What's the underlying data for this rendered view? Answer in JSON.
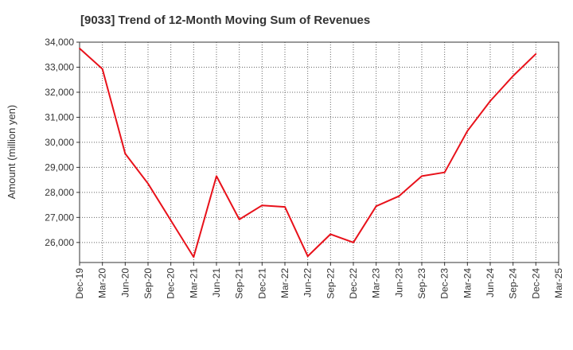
{
  "chart_data": {
    "type": "line",
    "title": "[9033]  Trend of 12-Month Moving Sum of Revenues",
    "xlabel": "",
    "ylabel": "Amount (million yen)",
    "ylim": [
      25200,
      34000
    ],
    "yticks": [
      26000,
      27000,
      28000,
      29000,
      30000,
      31000,
      32000,
      33000,
      34000
    ],
    "ytick_labels": [
      "26,000",
      "27,000",
      "28,000",
      "29,000",
      "30,000",
      "31,000",
      "32,000",
      "33,000",
      "34,000"
    ],
    "categories": [
      "Dec-19",
      "Mar-20",
      "Jun-20",
      "Sep-20",
      "Dec-20",
      "Mar-21",
      "Jun-21",
      "Sep-21",
      "Dec-21",
      "Mar-22",
      "Jun-22",
      "Sep-22",
      "Dec-22",
      "Mar-23",
      "Jun-23",
      "Sep-23",
      "Dec-23",
      "Mar-24",
      "Jun-24",
      "Sep-24",
      "Dec-24",
      "Mar-25"
    ],
    "series": [
      {
        "color": "#e8111a",
        "values": [
          33750,
          32930,
          29550,
          28350,
          26880,
          25420,
          28650,
          26920,
          27480,
          27420,
          25450,
          26330,
          26000,
          27450,
          27850,
          28650,
          28800,
          30450,
          31650,
          32650,
          33530,
          null
        ]
      }
    ],
    "grid": true,
    "grid_color": "#666666",
    "axis_color": "#333333"
  }
}
